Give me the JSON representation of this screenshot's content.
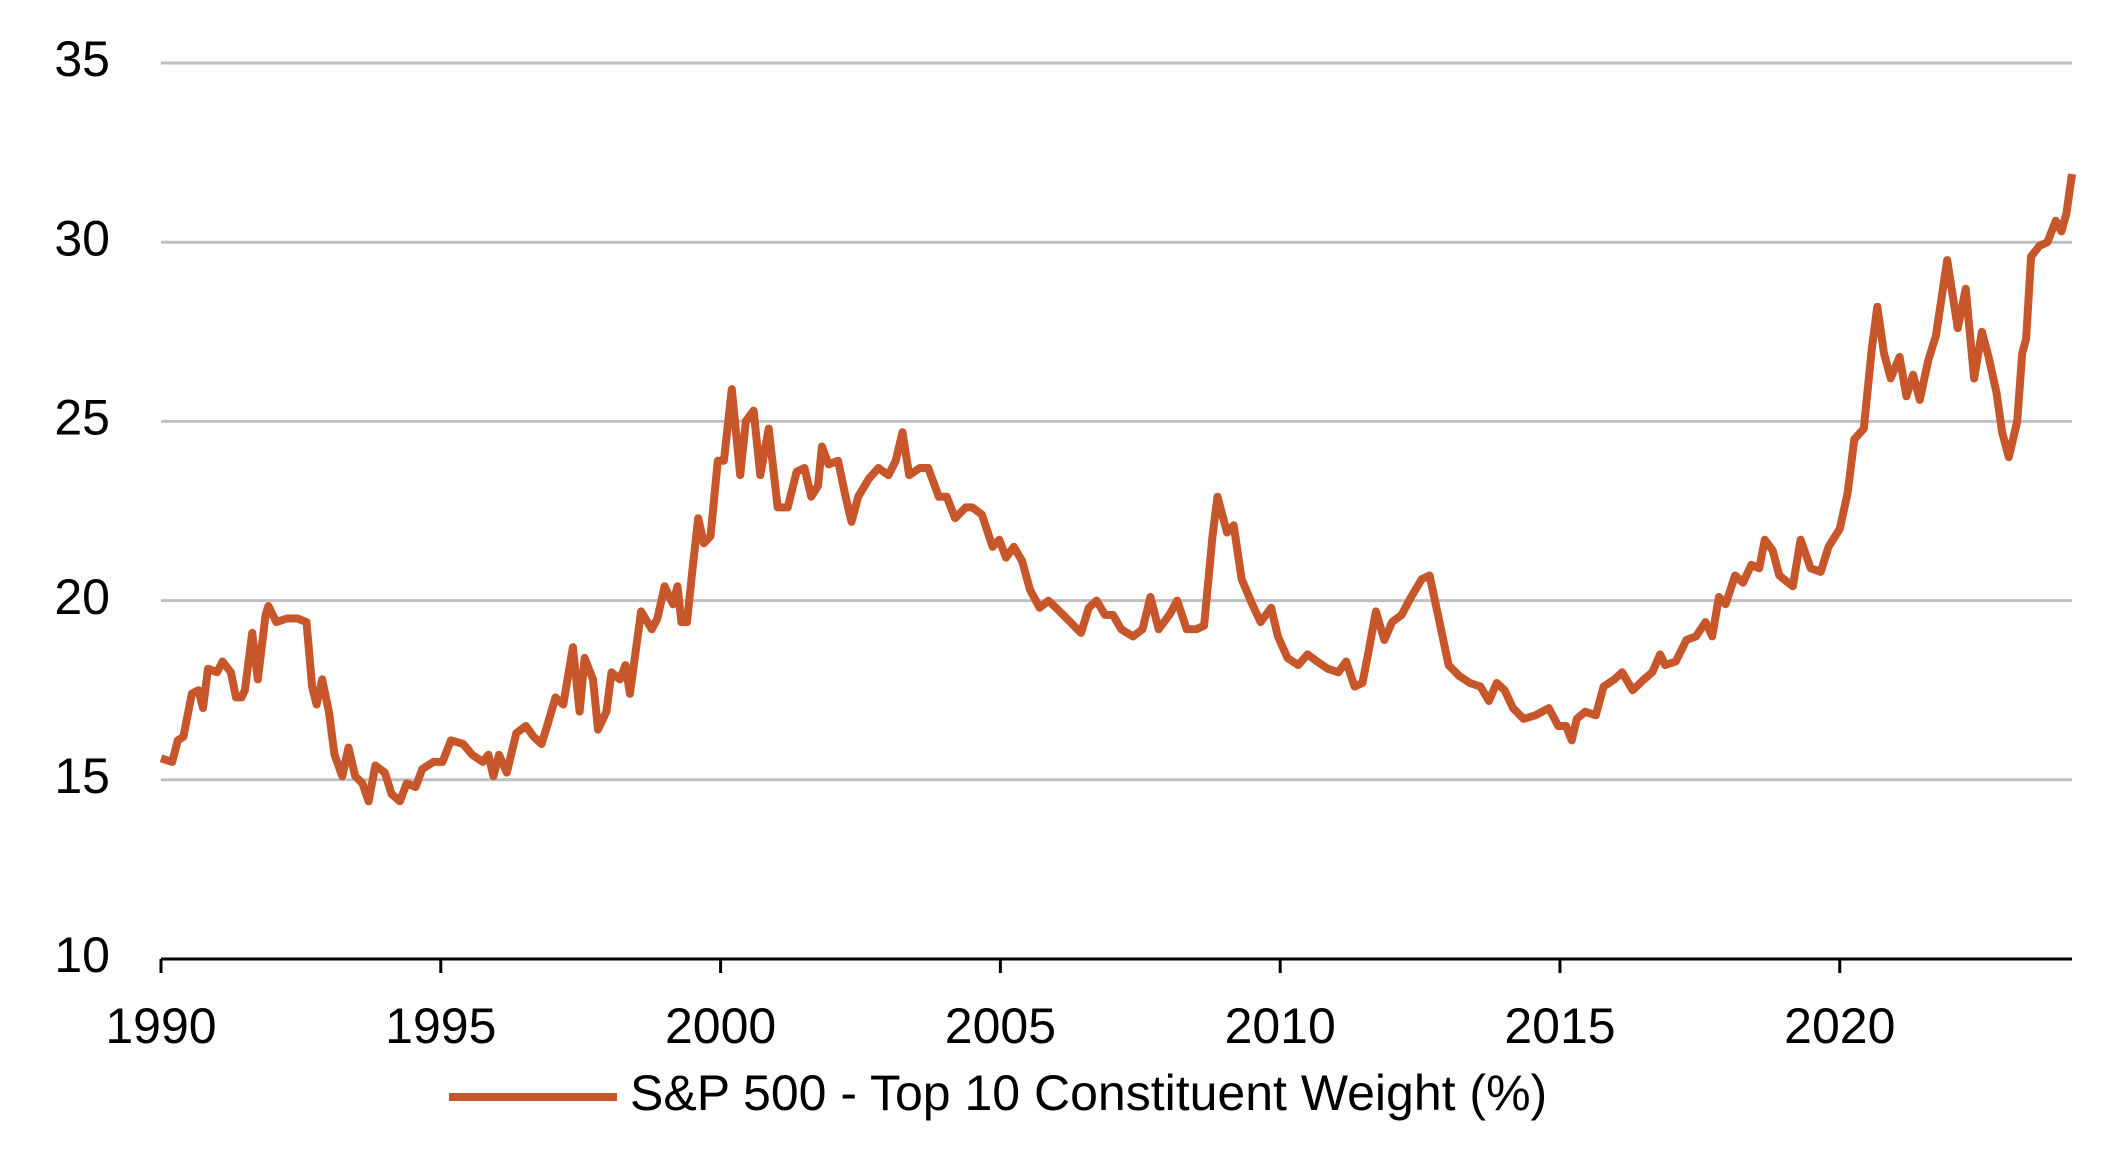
{
  "chart_data": {
    "type": "line",
    "x": [
      1990.0,
      1990.2,
      1990.3,
      1990.4,
      1990.55,
      1990.67,
      1990.75,
      1990.84,
      1991.0,
      1991.1,
      1991.25,
      1991.34,
      1991.44,
      1991.5,
      1991.63,
      1991.73,
      1991.87,
      1991.92,
      1992.06,
      1992.25,
      1992.44,
      1992.6,
      1992.7,
      1992.78,
      1992.88,
      1993.0,
      1993.1,
      1993.24,
      1993.35,
      1993.47,
      1993.6,
      1993.71,
      1993.83,
      1994.0,
      1994.12,
      1994.27,
      1994.39,
      1994.55,
      1994.67,
      1994.87,
      1995.03,
      1995.18,
      1995.4,
      1995.56,
      1995.75,
      1995.85,
      1995.94,
      1996.04,
      1996.18,
      1996.35,
      1996.52,
      1996.66,
      1996.8,
      1996.9,
      1997.05,
      1997.19,
      1997.36,
      1997.48,
      1997.57,
      1997.72,
      1997.81,
      1997.96,
      1998.05,
      1998.2,
      1998.3,
      1998.38,
      1998.58,
      1998.77,
      1998.87,
      1999.0,
      1999.15,
      1999.23,
      1999.3,
      1999.4,
      1999.5,
      1999.6,
      1999.7,
      1999.82,
      1999.95,
      2000.06,
      2000.2,
      2000.35,
      2000.45,
      2000.59,
      2000.71,
      2000.86,
      2001.02,
      2001.2,
      2001.36,
      2001.5,
      2001.62,
      2001.74,
      2001.81,
      2001.93,
      2002.1,
      2002.22,
      2002.34,
      2002.46,
      2002.65,
      2002.82,
      2003.0,
      2003.13,
      2003.25,
      2003.37,
      2003.56,
      2003.71,
      2003.9,
      2004.04,
      2004.19,
      2004.38,
      2004.5,
      2004.67,
      2004.86,
      2004.98,
      2005.1,
      2005.24,
      2005.39,
      2005.53,
      2005.7,
      2005.86,
      2006.06,
      2006.25,
      2006.44,
      2006.58,
      2006.72,
      2006.87,
      2007.01,
      2007.16,
      2007.37,
      2007.54,
      2007.68,
      2007.83,
      2008.02,
      2008.16,
      2008.33,
      2008.5,
      2008.64,
      2008.79,
      2008.88,
      2009.05,
      2009.17,
      2009.31,
      2009.5,
      2009.65,
      2009.84,
      2009.96,
      2010.13,
      2010.32,
      2010.49,
      2010.66,
      2010.85,
      2011.04,
      2011.18,
      2011.33,
      2011.47,
      2011.57,
      2011.71,
      2011.86,
      2012.0,
      2012.17,
      2012.34,
      2012.53,
      2012.67,
      2012.82,
      2013.01,
      2013.2,
      2013.39,
      2013.58,
      2013.73,
      2013.87,
      2014.01,
      2014.16,
      2014.35,
      2014.56,
      2014.8,
      2014.97,
      2015.11,
      2015.21,
      2015.3,
      2015.45,
      2015.64,
      2015.78,
      2015.97,
      2016.11,
      2016.3,
      2016.5,
      2016.65,
      2016.79,
      2016.88,
      2017.07,
      2017.26,
      2017.43,
      2017.6,
      2017.72,
      2017.84,
      2017.96,
      2018.13,
      2018.27,
      2018.42,
      2018.56,
      2018.66,
      2018.8,
      2018.92,
      2019.16,
      2019.3,
      2019.48,
      2019.66,
      2019.8,
      2020.0,
      2020.14,
      2020.26,
      2020.43,
      2020.57,
      2020.67,
      2020.79,
      2020.91,
      2021.07,
      2021.19,
      2021.31,
      2021.43,
      2021.58,
      2021.72,
      2021.92,
      2022.11,
      2022.25,
      2022.4,
      2022.54,
      2022.66,
      2022.8,
      2022.9,
      2023.02,
      2023.17,
      2023.26,
      2023.33,
      2023.42,
      2023.57,
      2023.71,
      2023.86,
      2023.96,
      2024.05,
      2024.15
    ],
    "series": [
      {
        "name": "S&P 500 - Top 10 Constituent Weight (%)",
        "color": "#c8562b",
        "values": [
          15.6,
          15.5,
          16.1,
          16.2,
          17.4,
          17.5,
          17.0,
          18.1,
          18.0,
          18.3,
          18.0,
          17.3,
          17.3,
          17.5,
          19.1,
          17.8,
          19.6,
          19.85,
          19.4,
          19.5,
          19.5,
          19.4,
          17.6,
          17.1,
          17.8,
          16.9,
          15.7,
          15.1,
          15.9,
          15.1,
          14.9,
          14.4,
          15.4,
          15.2,
          14.6,
          14.4,
          14.9,
          14.8,
          15.3,
          15.5,
          15.5,
          16.1,
          16.0,
          15.7,
          15.5,
          15.7,
          15.1,
          15.7,
          15.2,
          16.3,
          16.5,
          16.2,
          16.0,
          16.5,
          17.3,
          17.1,
          18.7,
          16.9,
          18.4,
          17.8,
          16.4,
          16.9,
          18.0,
          17.8,
          18.2,
          17.4,
          19.7,
          19.2,
          19.5,
          20.4,
          19.9,
          20.4,
          19.4,
          19.4,
          20.9,
          22.3,
          21.6,
          21.8,
          23.9,
          23.9,
          25.9,
          23.5,
          25.0,
          25.3,
          23.5,
          24.8,
          22.6,
          22.6,
          23.6,
          23.7,
          22.9,
          23.2,
          24.3,
          23.8,
          23.9,
          23.0,
          22.2,
          22.9,
          23.4,
          23.7,
          23.5,
          23.9,
          24.7,
          23.5,
          23.7,
          23.7,
          22.9,
          22.9,
          22.3,
          22.6,
          22.6,
          22.4,
          21.5,
          21.7,
          21.2,
          21.5,
          21.1,
          20.3,
          19.8,
          20.0,
          19.7,
          19.4,
          19.1,
          19.8,
          20.0,
          19.6,
          19.6,
          19.2,
          19.0,
          19.2,
          20.1,
          19.2,
          19.6,
          20.0,
          19.2,
          19.2,
          19.3,
          21.8,
          22.9,
          21.9,
          22.1,
          20.6,
          19.9,
          19.4,
          19.8,
          19.0,
          18.4,
          18.2,
          18.5,
          18.3,
          18.1,
          18.0,
          18.3,
          17.6,
          17.7,
          18.5,
          19.7,
          18.9,
          19.4,
          19.6,
          20.1,
          20.6,
          20.7,
          19.6,
          18.2,
          17.9,
          17.7,
          17.6,
          17.2,
          17.7,
          17.5,
          17.0,
          16.7,
          16.8,
          17.0,
          16.5,
          16.5,
          16.1,
          16.7,
          16.9,
          16.8,
          17.6,
          17.8,
          18.0,
          17.5,
          17.8,
          18.0,
          18.5,
          18.2,
          18.3,
          18.9,
          19.0,
          19.4,
          19.0,
          20.1,
          19.9,
          20.7,
          20.5,
          21.0,
          20.9,
          21.7,
          21.4,
          20.7,
          20.4,
          21.7,
          20.9,
          20.8,
          21.5,
          22.0,
          23.0,
          24.5,
          24.8,
          27.0,
          28.2,
          26.9,
          26.2,
          26.8,
          25.7,
          26.3,
          25.6,
          26.7,
          27.4,
          29.5,
          27.6,
          28.7,
          26.2,
          27.5,
          26.8,
          25.8,
          24.7,
          24.0,
          25.0,
          26.9,
          27.3,
          29.6,
          29.9,
          30.0,
          30.6,
          30.3,
          30.8,
          31.9
        ]
      }
    ],
    "xlim": [
      1990,
      2024.15
    ],
    "xticks": [
      1990,
      1995,
      2000,
      2005,
      2010,
      2015,
      2020
    ],
    "ylim": [
      10,
      35
    ],
    "yticks": [
      10,
      15,
      20,
      25,
      30,
      35
    ],
    "grid": true,
    "legend": "bottom"
  }
}
